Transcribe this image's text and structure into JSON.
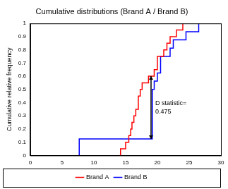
{
  "chart_data": {
    "type": "line",
    "title": "Cumulative distributions (Brand A / Brand B)",
    "y_label": "Cumulative relative frequency",
    "line_style": "step",
    "series": [
      {
        "name": "Brand A",
        "color": "#ff0000",
        "x": [
          14,
          14.2,
          15,
          15.5,
          15.8,
          16,
          16.3,
          16.6,
          17,
          17.3,
          17.6,
          18.6,
          19.5,
          20,
          21,
          21.5,
          22,
          23,
          24
        ],
        "values": [
          0,
          0.05,
          0.1,
          0.15,
          0.2,
          0.25,
          0.3,
          0.35,
          0.45,
          0.5,
          0.55,
          0.6,
          0.65,
          0.75,
          0.8,
          0.85,
          0.9,
          0.95,
          1
        ]
      },
      {
        "name": "Brand B",
        "color": "#0000ff",
        "x": [
          7.7,
          7.7,
          19.2,
          19.5,
          20,
          20.5,
          22,
          22.5,
          24.5,
          26.5
        ],
        "values": [
          0,
          0.125,
          0.5,
          0.5625,
          0.625,
          0.75,
          0.8125,
          0.875,
          0.9375,
          1
        ]
      }
    ],
    "xlim": [
      0,
      30
    ],
    "xticks": [
      0,
      5,
      10,
      15,
      20,
      25,
      30
    ],
    "ylim": [
      0,
      1
    ],
    "yticks": [
      0,
      0.1,
      0.2,
      0.3,
      0.4,
      0.5,
      0.6,
      0.7,
      0.8,
      0.9,
      1
    ],
    "grid": false,
    "legend": "bottom",
    "annotations": [
      {
        "text": "D statistic= 0.475",
        "x": 19,
        "y_from": 0.125,
        "y_to": 0.6
      }
    ]
  }
}
